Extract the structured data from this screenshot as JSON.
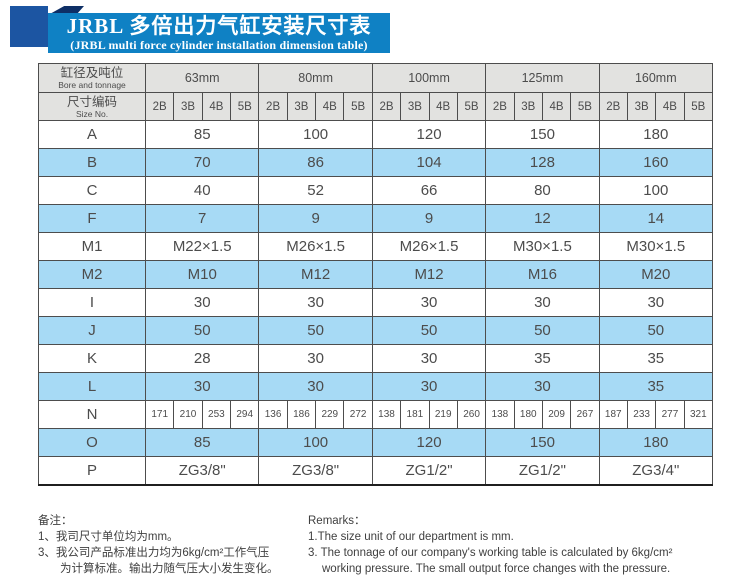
{
  "title": {
    "cn": "JRBL 多倍出力气缸安装尺寸表",
    "en": "(JRBL multi force cylinder installation dimension table)"
  },
  "table": {
    "col_header": {
      "cn": "缸径及吨位",
      "en": "Bore and tonnage"
    },
    "size_header": {
      "cn": "尺寸编码",
      "en": "Size No."
    },
    "bores": [
      "63mm",
      "80mm",
      "100mm",
      "125mm",
      "160mm"
    ],
    "size_codes": [
      "2B",
      "3B",
      "4B",
      "5B"
    ],
    "rows": [
      {
        "label": "A",
        "type": "merged",
        "highlight": false,
        "values": [
          "85",
          "100",
          "120",
          "150",
          "180"
        ]
      },
      {
        "label": "B",
        "type": "merged",
        "highlight": true,
        "values": [
          "70",
          "86",
          "104",
          "128",
          "160"
        ]
      },
      {
        "label": "C",
        "type": "merged",
        "highlight": false,
        "values": [
          "40",
          "52",
          "66",
          "80",
          "100"
        ]
      },
      {
        "label": "F",
        "type": "merged",
        "highlight": true,
        "values": [
          "7",
          "9",
          "9",
          "12",
          "14"
        ]
      },
      {
        "label": "M1",
        "type": "merged",
        "highlight": false,
        "values": [
          "M22×1.5",
          "M26×1.5",
          "M26×1.5",
          "M30×1.5",
          "M30×1.5"
        ]
      },
      {
        "label": "M2",
        "type": "merged",
        "highlight": true,
        "values": [
          "M10",
          "M12",
          "M12",
          "M16",
          "M20"
        ]
      },
      {
        "label": "I",
        "type": "merged",
        "highlight": false,
        "values": [
          "30",
          "30",
          "30",
          "30",
          "30"
        ]
      },
      {
        "label": "J",
        "type": "merged",
        "highlight": true,
        "values": [
          "50",
          "50",
          "50",
          "50",
          "50"
        ]
      },
      {
        "label": "K",
        "type": "merged",
        "highlight": false,
        "values": [
          "28",
          "30",
          "30",
          "35",
          "35"
        ]
      },
      {
        "label": "L",
        "type": "merged",
        "highlight": true,
        "values": [
          "30",
          "30",
          "30",
          "30",
          "35"
        ]
      },
      {
        "label": "N",
        "type": "per-size",
        "highlight": false,
        "values": [
          [
            "171",
            "210",
            "253",
            "294"
          ],
          [
            "136",
            "186",
            "229",
            "272"
          ],
          [
            "138",
            "181",
            "219",
            "260"
          ],
          [
            "138",
            "180",
            "209",
            "267"
          ],
          [
            "187",
            "233",
            "277",
            "321"
          ]
        ]
      },
      {
        "label": "O",
        "type": "merged",
        "highlight": true,
        "values": [
          "85",
          "100",
          "120",
          "150",
          "180"
        ]
      },
      {
        "label": "P",
        "type": "merged",
        "highlight": false,
        "values": [
          "ZG3/8\"",
          "ZG3/8\"",
          "ZG1/2\"",
          "ZG1/2\"",
          "ZG3/4\""
        ]
      }
    ]
  },
  "notes": {
    "cn": {
      "heading": "备注：",
      "lines": [
        {
          "text": "1、我司尺寸单位均为mm。",
          "indent": false
        },
        {
          "text": "3、我公司产品标准出力均为6kg/cm²工作气压",
          "indent": false
        },
        {
          "text": "为计算标准。输出力随气压大小发生变化。",
          "indent": true
        }
      ]
    },
    "en": {
      "heading": "Remarks：",
      "lines": [
        {
          "text": "1.The size unit of our department is mm.",
          "indent": false
        },
        {
          "text": "3. The tonnage of our company's working table is calculated by 6kg/cm²",
          "indent": false
        },
        {
          "text": "working pressure. The small output force changes with the pressure.",
          "indent": true
        }
      ]
    }
  },
  "colors": {
    "banner_blue": "#0f81c4",
    "corner_square_blue": "#1c55a2",
    "fold_navy": "#0e2f66",
    "header_gray": "#e2e2e0",
    "highlight_row_blue": "#a7daf5",
    "grid_line": "#4d4d4d",
    "table_text": "#4c4c4c"
  }
}
